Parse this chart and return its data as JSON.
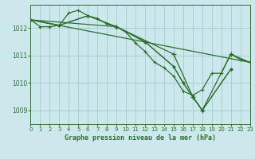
{
  "background_color": "#cce8ec",
  "grid_color": "#aacdd4",
  "line_color": "#2d6e2d",
  "title": "Graphe pression niveau de la mer (hPa)",
  "xlim": [
    0,
    23
  ],
  "ylim": [
    1008.5,
    1012.85
  ],
  "yticks": [
    1009,
    1010,
    1011,
    1012
  ],
  "xticks": [
    0,
    1,
    2,
    3,
    4,
    5,
    6,
    7,
    8,
    9,
    10,
    11,
    12,
    13,
    14,
    15,
    16,
    17,
    18,
    19,
    20,
    21,
    22,
    23
  ],
  "series1_x": [
    0,
    1,
    2,
    3,
    4,
    5,
    6,
    7,
    8,
    9,
    10,
    11,
    12,
    13,
    14,
    15,
    16,
    17,
    18,
    19,
    20,
    21,
    22,
    23
  ],
  "series1_y": [
    1012.3,
    1012.05,
    1012.05,
    1012.1,
    1012.55,
    1012.65,
    1012.45,
    1012.35,
    1012.15,
    1012.05,
    1011.85,
    1011.45,
    1011.15,
    1010.75,
    1010.55,
    1010.25,
    1009.7,
    1009.55,
    1009.75,
    1010.35,
    1010.35,
    1011.05,
    1010.85,
    1010.75
  ],
  "series2_x": [
    0,
    3,
    6,
    9,
    12,
    15,
    16,
    17,
    18,
    21
  ],
  "series2_y": [
    1012.3,
    1012.1,
    1012.45,
    1012.05,
    1011.5,
    1010.6,
    1010.0,
    1009.5,
    1009.0,
    1010.5
  ],
  "series3_x": [
    0,
    23
  ],
  "series3_y": [
    1012.3,
    1010.75
  ],
  "series4_x": [
    0,
    9,
    15,
    17,
    18,
    21,
    23
  ],
  "series4_y": [
    1012.3,
    1012.05,
    1011.05,
    1009.5,
    1009.0,
    1011.05,
    1010.75
  ]
}
